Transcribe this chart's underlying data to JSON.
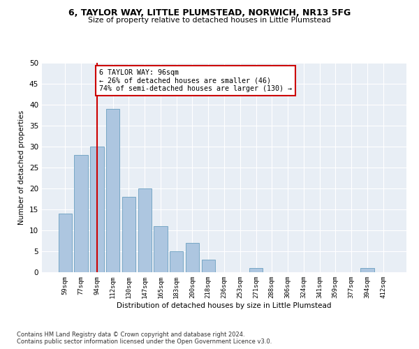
{
  "title": "6, TAYLOR WAY, LITTLE PLUMSTEAD, NORWICH, NR13 5FG",
  "subtitle": "Size of property relative to detached houses in Little Plumstead",
  "xlabel": "Distribution of detached houses by size in Little Plumstead",
  "ylabel": "Number of detached properties",
  "bar_labels": [
    "59sqm",
    "77sqm",
    "94sqm",
    "112sqm",
    "130sqm",
    "147sqm",
    "165sqm",
    "183sqm",
    "200sqm",
    "218sqm",
    "236sqm",
    "253sqm",
    "271sqm",
    "288sqm",
    "306sqm",
    "324sqm",
    "341sqm",
    "359sqm",
    "377sqm",
    "394sqm",
    "412sqm"
  ],
  "bar_values": [
    14,
    28,
    30,
    39,
    18,
    20,
    11,
    5,
    7,
    3,
    0,
    0,
    1,
    0,
    0,
    0,
    0,
    0,
    0,
    1,
    0
  ],
  "bar_color": "#adc6e0",
  "bar_edge_color": "#6a9fc0",
  "red_line_index": 2,
  "annotation_text": "6 TAYLOR WAY: 96sqm\n← 26% of detached houses are smaller (46)\n74% of semi-detached houses are larger (130) →",
  "annotation_box_color": "#ffffff",
  "annotation_box_edge_color": "#cc0000",
  "red_line_color": "#cc0000",
  "ylim": [
    0,
    50
  ],
  "yticks": [
    0,
    5,
    10,
    15,
    20,
    25,
    30,
    35,
    40,
    45,
    50
  ],
  "bg_color": "#e8eef5",
  "footer_line1": "Contains HM Land Registry data © Crown copyright and database right 2024.",
  "footer_line2": "Contains public sector information licensed under the Open Government Licence v3.0."
}
